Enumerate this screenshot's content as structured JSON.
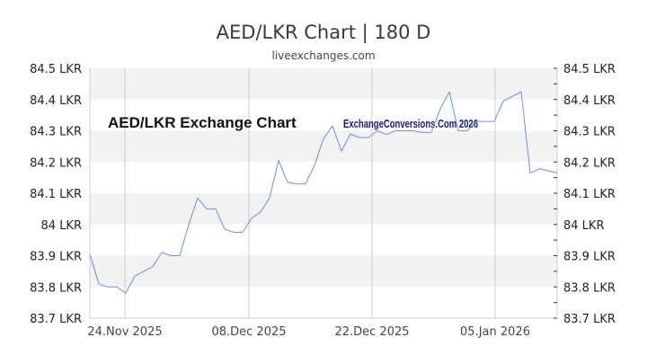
{
  "header": {
    "title": "AED/LKR Chart | 180 D",
    "subtitle": "liveexchanges.com"
  },
  "watermarks": {
    "left": "AED/LKR Exchange Chart",
    "right": "ExchangeConversions.Com 2026"
  },
  "colors": {
    "line": "#6f8fd6",
    "band": "#f2f2f2",
    "grid": "#cccccc",
    "watermark_right": "#1a1a6e"
  },
  "chart_data": {
    "type": "line",
    "title": "AED/LKR Chart | 180 D",
    "subtitle": "liveexchanges.com",
    "xlabel": "",
    "ylabel": "",
    "ylim": [
      83.7,
      84.5
    ],
    "y_ticks": [
      "84.5 LKR",
      "84.4 LKR",
      "84.3 LKR",
      "84.2 LKR",
      "84.1 LKR",
      "84 LKR",
      "83.9 LKR",
      "83.8 LKR",
      "83.7 LKR"
    ],
    "x_ticks": [
      "24.Nov 2025",
      "08.Dec 2025",
      "22.Dec 2025",
      "05.Jan 2026"
    ],
    "grid": true,
    "legend": null,
    "series": [
      {
        "name": "AED/LKR",
        "x": [
          "20.Nov",
          "21.Nov",
          "22.Nov",
          "23.Nov",
          "24.Nov",
          "25.Nov",
          "26.Nov",
          "27.Nov",
          "28.Nov",
          "29.Nov",
          "30.Nov",
          "01.Dec",
          "02.Dec",
          "03.Dec",
          "04.Dec",
          "05.Dec",
          "06.Dec",
          "07.Dec",
          "08.Dec",
          "09.Dec",
          "10.Dec",
          "11.Dec",
          "12.Dec",
          "13.Dec",
          "14.Dec",
          "15.Dec",
          "16.Dec",
          "17.Dec",
          "18.Dec",
          "19.Dec",
          "20.Dec",
          "21.Dec",
          "22.Dec",
          "23.Dec",
          "24.Dec",
          "25.Dec",
          "26.Dec",
          "27.Dec",
          "28.Dec",
          "29.Dec",
          "30.Dec",
          "31.Dec",
          "01.Jan",
          "02.Jan",
          "03.Jan",
          "04.Jan",
          "05.Jan",
          "06.Jan",
          "07.Jan",
          "08.Jan",
          "09.Jan",
          "10.Jan",
          "11.Jan"
        ],
        "values": [
          83.905,
          83.81,
          83.8,
          83.8,
          83.78,
          83.835,
          83.85,
          83.865,
          83.91,
          83.9,
          83.9,
          84.0,
          84.085,
          84.05,
          84.05,
          83.985,
          83.975,
          83.975,
          84.02,
          84.04,
          84.085,
          84.205,
          84.135,
          84.13,
          84.13,
          84.19,
          84.275,
          84.315,
          84.235,
          84.29,
          84.278,
          84.278,
          84.3,
          84.288,
          84.3,
          84.3,
          84.3,
          84.295,
          84.295,
          84.37,
          84.425,
          84.3,
          84.3,
          84.33,
          84.33,
          84.33,
          84.395,
          84.41,
          84.425,
          84.165,
          84.178,
          84.172,
          84.165
        ]
      }
    ]
  }
}
